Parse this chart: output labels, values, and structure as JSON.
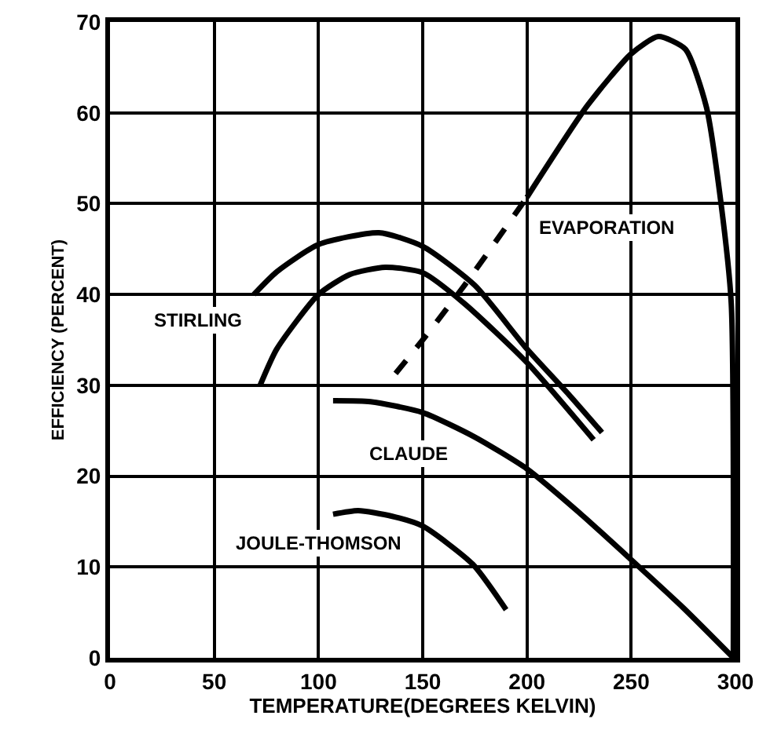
{
  "chart_data": {
    "type": "line",
    "xlabel": "TEMPERATURE(DEGREES KELVIN)",
    "ylabel": "EFFICIENCY (PERCENT)",
    "xlim": [
      0,
      300
    ],
    "ylim": [
      0,
      70
    ],
    "xticks": [
      0,
      50,
      100,
      150,
      200,
      250,
      300
    ],
    "yticks": [
      0,
      10,
      20,
      30,
      40,
      50,
      60,
      70
    ],
    "grid": true,
    "marker": "none",
    "series": [
      {
        "name": "STIRLING",
        "color": "#000000",
        "line_style": "solid",
        "x": [
          69,
          80,
          100,
          129,
          150,
          175,
          200,
          220,
          236
        ],
        "values": [
          40,
          42.5,
          45.5,
          46.8,
          45.3,
          41,
          34,
          29,
          24.8
        ]
      },
      {
        "color": "#000000",
        "line_style": "solid",
        "x": [
          72,
          80,
          100,
          115,
          132,
          150,
          170,
          200,
          232
        ],
        "values": [
          30,
          34,
          40,
          42.2,
          43,
          42.4,
          39,
          32.5,
          24
        ]
      },
      {
        "name": "EVAPORATION",
        "color": "#000000",
        "line_style": "dashed",
        "x": [
          137,
          150,
          170,
          200
        ],
        "values": [
          31.3,
          35,
          41,
          50.7
        ]
      },
      {
        "color": "#000000",
        "line_style": "solid",
        "x": [
          200,
          229,
          250,
          263,
          276,
          286,
          293,
          298,
          299
        ],
        "values": [
          50.7,
          60.8,
          66.5,
          68.4,
          67,
          60.7,
          50.2,
          39,
          0
        ]
      },
      {
        "name": "CLAUDE",
        "color": "#000000",
        "line_style": "solid",
        "x": [
          107,
          125,
          150,
          175,
          200,
          225,
          250,
          275,
          299
        ],
        "values": [
          28.3,
          28.2,
          27,
          24.3,
          20.8,
          16,
          10.8,
          5.5,
          0
        ]
      },
      {
        "name": "JOULE-THOMSON",
        "color": "#000000",
        "line_style": "solid",
        "x": [
          107,
          119,
          135,
          150,
          174,
          190
        ],
        "values": [
          15.8,
          16.2,
          15.6,
          14.5,
          10.3,
          5.3
        ]
      }
    ]
  }
}
